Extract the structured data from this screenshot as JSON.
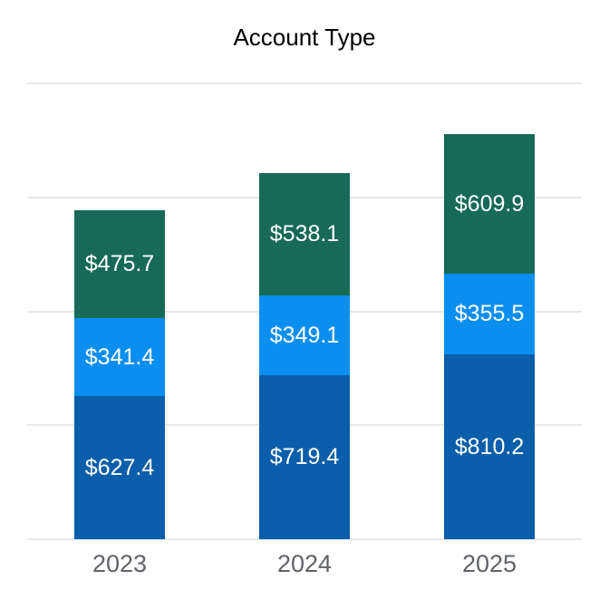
{
  "chart_data": {
    "type": "bar",
    "stacked": true,
    "title": "Account Type",
    "categories": [
      "2023",
      "2024",
      "2025"
    ],
    "series": [
      {
        "name": "bottom-segment",
        "color": "#0b5ea9",
        "values": [
          627.4,
          719.4,
          810.2
        ],
        "labels": [
          "$627.4",
          "$719.4",
          "$810.2"
        ]
      },
      {
        "name": "middle-segment",
        "color": "#0a8ef0",
        "values": [
          341.4,
          349.1,
          355.5
        ],
        "labels": [
          "$341.4",
          "$349.1",
          "$355.5"
        ]
      },
      {
        "name": "top-segment",
        "color": "#176a56",
        "values": [
          475.7,
          538.1,
          609.9
        ],
        "labels": [
          "$475.7",
          "$538.1",
          "$609.9"
        ]
      }
    ],
    "xlabel": "",
    "ylabel": "",
    "ylim": [
      0,
      2000
    ],
    "gridline_values": [
      0,
      500,
      1000,
      1500,
      2000
    ],
    "grid": true,
    "legend": "none",
    "styles": {
      "segment_label_color": "#ffffff",
      "axis_label_color": "#5f6368",
      "title_color": "#000000",
      "gridline_color": "#e8e8e8",
      "background": "#ffffff"
    }
  }
}
